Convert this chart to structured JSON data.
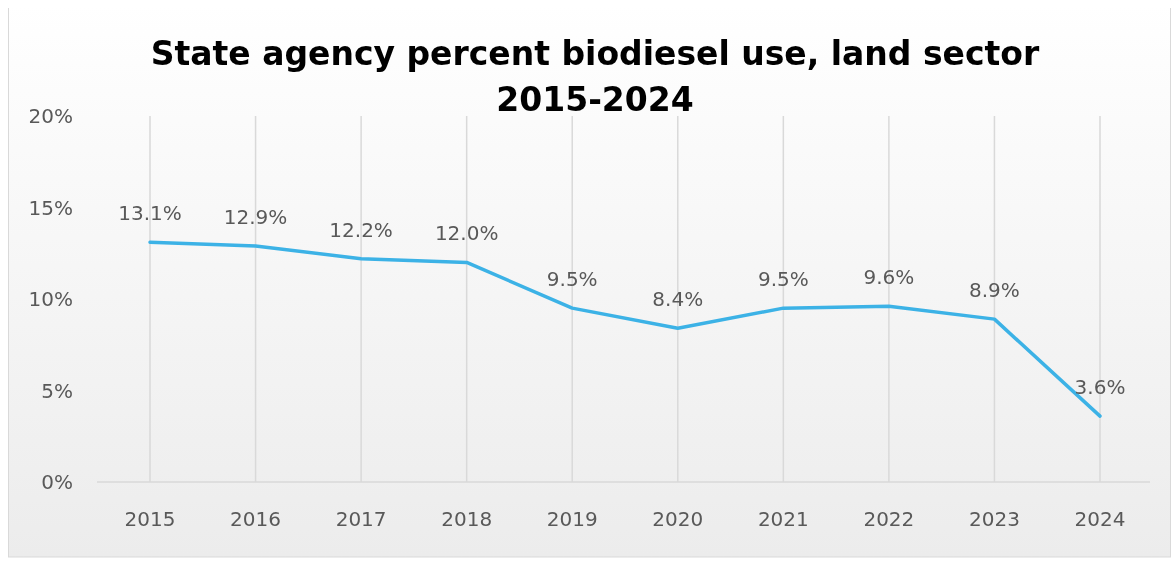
{
  "chart_data": {
    "type": "line",
    "title": "State agency percent biodiesel use, land sector\n2015-2024",
    "categories": [
      "2015",
      "2016",
      "2017",
      "2018",
      "2019",
      "2020",
      "2021",
      "2022",
      "2023",
      "2024"
    ],
    "series": [
      {
        "color": "#3cb2e6",
        "values": [
          13.1,
          12.9,
          12.2,
          12.0,
          9.5,
          8.4,
          9.5,
          9.6,
          8.9,
          3.6
        ],
        "value_labels": [
          "13.1%",
          "12.9%",
          "12.2%",
          "12.0%",
          "9.5%",
          "8.4%",
          "9.5%",
          "9.6%",
          "8.9%",
          "3.6%"
        ]
      }
    ],
    "ylim": [
      0,
      20
    ],
    "yticks": [
      {
        "value": 0,
        "label": "0%"
      },
      {
        "value": 5,
        "label": "5%"
      },
      {
        "value": 10,
        "label": "10%"
      },
      {
        "value": 15,
        "label": "15%"
      },
      {
        "value": 20,
        "label": "20%"
      }
    ],
    "grid": "x",
    "marker": "none",
    "line_style": "solid"
  }
}
